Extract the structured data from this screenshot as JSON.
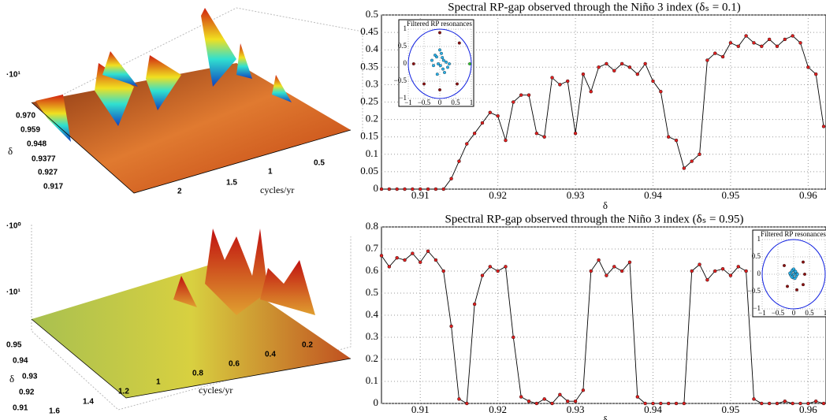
{
  "chart_data": [
    {
      "type": "surface",
      "zlabels": [
        "·10¹"
      ],
      "ylabel": "δ",
      "yticks": [
        {
          "value": 0.97,
          "label": "0.970"
        },
        0.959,
        0.948,
        0.9377,
        0.927,
        0.917
      ],
      "xlabel": "cycles/yr",
      "xticks": [
        2,
        1.5,
        1,
        0.5
      ],
      "colormap": "jet"
    },
    {
      "type": "line",
      "title": "Spectral RP-gap observed through the Niño 3 index (δₛ = 0.1)",
      "xlabel": "δ",
      "x": [
        0.905,
        0.906,
        0.907,
        0.908,
        0.909,
        0.91,
        0.911,
        0.912,
        0.913,
        0.914,
        0.915,
        0.916,
        0.917,
        0.918,
        0.919,
        0.92,
        0.921,
        0.922,
        0.923,
        0.924,
        0.925,
        0.926,
        0.927,
        0.928,
        0.929,
        0.93,
        0.931,
        0.932,
        0.933,
        0.934,
        0.935,
        0.936,
        0.937,
        0.938,
        0.939,
        0.94,
        0.941,
        0.942,
        0.943,
        0.944,
        0.945,
        0.946,
        0.947,
        0.948,
        0.949,
        0.95,
        0.951,
        0.952,
        0.953,
        0.954,
        0.955,
        0.956,
        0.957,
        0.958,
        0.959,
        0.96,
        0.961,
        0.962
      ],
      "series": [
        {
          "color": "#000000",
          "marker_color": "#e02020",
          "values": [
            0,
            0,
            0,
            0,
            0,
            0,
            0,
            0,
            0,
            0.03,
            0.08,
            0.13,
            0.16,
            0.19,
            0.22,
            0.21,
            0.14,
            0.25,
            0.27,
            0.27,
            0.16,
            0.15,
            0.32,
            0.3,
            0.31,
            0.16,
            0.33,
            0.28,
            0.35,
            0.36,
            0.34,
            0.36,
            0.35,
            0.33,
            0.36,
            0.31,
            0.28,
            0.15,
            0.14,
            0.06,
            0.08,
            0.1,
            0.37,
            0.39,
            0.38,
            0.42,
            0.41,
            0.44,
            0.42,
            0.41,
            0.43,
            0.41,
            0.43,
            0.44,
            0.42,
            0.35,
            0.33,
            0.18
          ]
        }
      ],
      "xlim": [
        0.905,
        0.9623
      ],
      "ylim": [
        0,
        0.5
      ],
      "xticks": [
        0.91,
        0.92,
        0.93,
        0.94,
        0.95,
        0.96
      ],
      "yticks": [
        0,
        0.05,
        0.1,
        0.15,
        0.2,
        0.25,
        0.3,
        0.35,
        0.4,
        0.45,
        0.5
      ],
      "grid": true,
      "inset": {
        "title": "Filtered RP resonances",
        "lim": [
          -1,
          1
        ],
        "ticks": [
          {
            "value": -1,
            "label": "−1"
          },
          {
            "value": -0.5,
            "label": "−0.5"
          },
          0,
          0.5,
          1
        ],
        "series": [
          {
            "color": "#8b1010",
            "x": [
              0,
              0.62,
              -0.83,
              -0.5,
              0,
              0.55
            ],
            "y": [
              0.9,
              0.6,
              0,
              -0.58,
              -0.75,
              -0.58
            ]
          },
          {
            "color": "#2ab0e8",
            "x": [
              0.05,
              -0.1,
              0.12,
              -0.05,
              0.2,
              -0.2,
              0.1,
              0,
              0.15,
              -0.15,
              0.25,
              -0.08,
              0.08,
              0.3,
              -0.25,
              0.02
            ],
            "y": [
              0.3,
              0.2,
              0.1,
              0,
              0.05,
              -0.05,
              -0.15,
              0.4,
              -0.25,
              0.25,
              -0.1,
              -0.3,
              0.18,
              0,
              0.1,
              -0.05
            ]
          },
          {
            "color": "#30c030",
            "x": [
              0.95
            ],
            "y": [
              0
            ]
          }
        ]
      }
    },
    {
      "type": "surface",
      "zlabels": [
        "·10⁰",
        "·10¹"
      ],
      "ylabel": "δ",
      "yticks": [
        0.95,
        0.94,
        0.93,
        0.92,
        0.91
      ],
      "xlabel": "cycles/yr",
      "xticks": [
        1.6,
        1.4,
        1.2,
        1,
        0.8,
        0.6,
        0.4,
        0.2
      ],
      "colormap": "autumn"
    },
    {
      "type": "line",
      "title": "Spectral RP-gap observed through the Niño 3 index (δₛ = 0.95)",
      "xlabel": "δ",
      "x": [
        0.905,
        0.906,
        0.907,
        0.908,
        0.909,
        0.91,
        0.911,
        0.912,
        0.913,
        0.914,
        0.915,
        0.916,
        0.917,
        0.918,
        0.919,
        0.92,
        0.921,
        0.922,
        0.923,
        0.924,
        0.925,
        0.926,
        0.927,
        0.928,
        0.929,
        0.93,
        0.931,
        0.932,
        0.933,
        0.934,
        0.935,
        0.936,
        0.937,
        0.938,
        0.939,
        0.94,
        0.941,
        0.942,
        0.943,
        0.944,
        0.945,
        0.946,
        0.947,
        0.948,
        0.949,
        0.95,
        0.951,
        0.952,
        0.953,
        0.954,
        0.955,
        0.956,
        0.957,
        0.958,
        0.959,
        0.96,
        0.961,
        0.962
      ],
      "series": [
        {
          "color": "#000000",
          "marker_color": "#e02020",
          "values": [
            0.67,
            0.62,
            0.66,
            0.65,
            0.68,
            0.64,
            0.69,
            0.65,
            0.6,
            0.35,
            0.02,
            0,
            0.45,
            0.58,
            0.62,
            0.6,
            0.62,
            0.3,
            0.03,
            0.01,
            0,
            0.02,
            0,
            0.04,
            0.01,
            0.01,
            0.06,
            0.6,
            0.65,
            0.58,
            0.62,
            0.6,
            0.64,
            0.03,
            0,
            0,
            0,
            0,
            0,
            0,
            0.6,
            0.63,
            0.56,
            0.6,
            0.61,
            0.58,
            0.62,
            0.6,
            0.02,
            0,
            0,
            0,
            0.01,
            0,
            0,
            0,
            0.01,
            0
          ]
        }
      ],
      "xlim": [
        0.905,
        0.9623
      ],
      "ylim": [
        0,
        0.8
      ],
      "xticks": [
        0.91,
        0.92,
        0.93,
        0.94,
        0.95,
        0.96
      ],
      "yticks": [
        0,
        0.1,
        0.2,
        0.3,
        0.4,
        0.5,
        0.6,
        0.7,
        0.8
      ],
      "grid": true,
      "inset": {
        "title": "Filtered RP resonances",
        "lim": [
          -1,
          1
        ],
        "ticks": [
          {
            "value": -1,
            "label": "−1"
          },
          {
            "value": -0.5,
            "label": "−0.5"
          },
          0,
          0.5,
          1
        ],
        "series": [
          {
            "color": "#8b1010",
            "x": [
              0.3,
              0.35,
              -0.3,
              0.3,
              0.1,
              -0.2
            ],
            "y": [
              0.35,
              0,
              0.25,
              -0.3,
              -0.45,
              -0.35
            ]
          },
          {
            "color": "#2ab0e8",
            "x": [
              0,
              0.05,
              -0.05,
              0.1,
              -0.1,
              0.02,
              -0.02,
              0.08,
              -0.08,
              0.12,
              -0.12,
              0.04,
              -0.04,
              0.06,
              -0.06,
              0
            ],
            "y": [
              0,
              0.05,
              -0.05,
              0.02,
              -0.02,
              0.1,
              -0.1,
              -0.06,
              0.06,
              0,
              0.03,
              -0.12,
              0.12,
              0.08,
              -0.08,
              0.15
            ]
          }
        ]
      }
    }
  ]
}
